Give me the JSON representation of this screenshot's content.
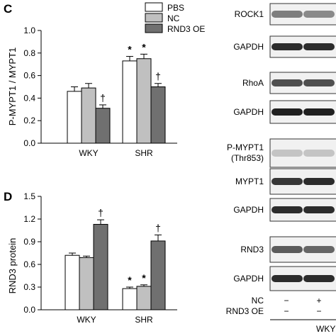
{
  "panels": {
    "c": {
      "letter": "C"
    },
    "d": {
      "letter": "D"
    }
  },
  "legend": [
    {
      "label": "PBS",
      "color": "#ffffff"
    },
    {
      "label": "NC",
      "color": "#c0c0c0"
    },
    {
      "label": "RND3 OE",
      "color": "#707070"
    }
  ],
  "chart_data": [
    {
      "type": "bar",
      "panel": "C",
      "title": "",
      "xlabel": "",
      "ylabel": "P-MYPT1 / MYPT1",
      "categories": [
        "WKY",
        "SHR"
      ],
      "ylim": [
        0,
        1.0
      ],
      "yticks": [
        0.0,
        0.2,
        0.4,
        0.6,
        0.8,
        1.0
      ],
      "ytick_labels": [
        "0.0",
        "0.2",
        "0.4",
        "0.6",
        "0.8",
        "1.0"
      ],
      "series": [
        {
          "name": "PBS",
          "color": "#ffffff",
          "values": [
            0.46,
            0.73
          ],
          "errors": [
            0.04,
            0.04
          ]
        },
        {
          "name": "NC",
          "color": "#c0c0c0",
          "values": [
            0.49,
            0.75
          ],
          "errors": [
            0.04,
            0.04
          ]
        },
        {
          "name": "RND3 OE",
          "color": "#707070",
          "values": [
            0.31,
            0.5
          ],
          "errors": [
            0.03,
            0.03
          ]
        }
      ],
      "annotations": [
        {
          "category": "WKY",
          "series": "RND3 OE",
          "text": "†"
        },
        {
          "category": "SHR",
          "series": "PBS",
          "text": "*"
        },
        {
          "category": "SHR",
          "series": "NC",
          "text": "*"
        },
        {
          "category": "SHR",
          "series": "RND3 OE",
          "text": "†"
        }
      ]
    },
    {
      "type": "bar",
      "panel": "D",
      "title": "",
      "xlabel": "",
      "ylabel": "RND3 protein",
      "categories": [
        "WKY",
        "SHR"
      ],
      "ylim": [
        0,
        1.5
      ],
      "yticks": [
        0.0,
        0.3,
        0.6,
        0.9,
        1.2,
        1.5
      ],
      "ytick_labels": [
        "0.0",
        "0.3",
        "0.6",
        "0.9",
        "1.2",
        "1.5"
      ],
      "series": [
        {
          "name": "PBS",
          "color": "#ffffff",
          "values": [
            0.72,
            0.28
          ],
          "errors": [
            0.03,
            0.02
          ]
        },
        {
          "name": "NC",
          "color": "#c0c0c0",
          "values": [
            0.69,
            0.31
          ],
          "errors": [
            0.02,
            0.02
          ]
        },
        {
          "name": "RND3 OE",
          "color": "#707070",
          "values": [
            1.13,
            0.91
          ],
          "errors": [
            0.06,
            0.08
          ]
        }
      ],
      "annotations": [
        {
          "category": "WKY",
          "series": "RND3 OE",
          "text": "†"
        },
        {
          "category": "SHR",
          "series": "PBS",
          "text": "*"
        },
        {
          "category": "SHR",
          "series": "NC",
          "text": "*"
        },
        {
          "category": "SHR",
          "series": "RND3 OE",
          "text": "†"
        }
      ]
    }
  ],
  "blots": [
    {
      "label": "ROCK1"
    },
    {
      "label": "GAPDH"
    },
    {
      "label": "RhoA"
    },
    {
      "label": "GAPDH"
    },
    {
      "label": "P-MYPT1",
      "label2": "(Thr853)"
    },
    {
      "label": "MYPT1"
    },
    {
      "label": "GAPDH"
    },
    {
      "label": "RND3"
    },
    {
      "label": "GAPDH"
    }
  ],
  "treatments": [
    {
      "label": "NC",
      "marks": [
        "−",
        "+"
      ]
    },
    {
      "label": "RND3 OE",
      "marks": [
        "−",
        "−"
      ]
    }
  ],
  "group_label": "WKY"
}
